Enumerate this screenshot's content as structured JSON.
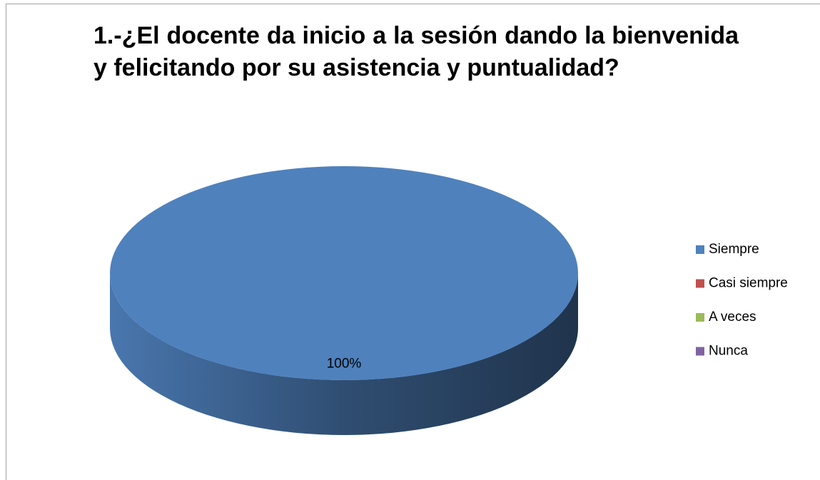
{
  "chart_data": {
    "type": "pie",
    "title": "1.-¿El docente da inicio a la sesión dando la bienvenida y felicitando por su asistencia y puntualidad?",
    "categories": [
      "Siempre",
      "Casi siempre",
      "A veces",
      "Nunca"
    ],
    "values": [
      100,
      0,
      0,
      0
    ],
    "value_labels": [
      "100%",
      null,
      null,
      null
    ],
    "colors": [
      "#4f81bd",
      "#c0504d",
      "#9bbb59",
      "#8064a2"
    ],
    "legend": "right"
  }
}
